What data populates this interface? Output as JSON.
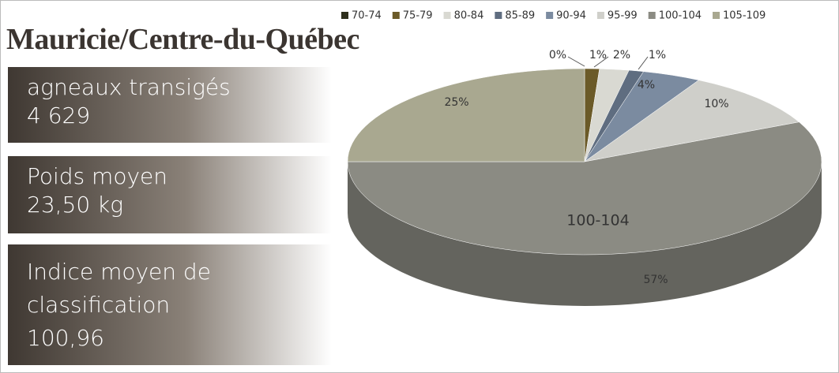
{
  "title": "Mauricie/Centre-du-Québec",
  "stats": [
    {
      "lines": [
        "agneaux transigés",
        "4 629"
      ]
    },
    {
      "lines": [
        "Poids moyen",
        "23,50 kg"
      ]
    },
    {
      "lines": [
        "Indice moyen de",
        "classification",
        "100,96"
      ]
    }
  ],
  "chart_data": {
    "type": "pie3d",
    "categories": [
      "70-74",
      "75-79",
      "80-84",
      "85-89",
      "90-94",
      "95-99",
      "100-104",
      "105-109"
    ],
    "values": [
      0,
      1,
      2,
      1,
      4,
      10,
      57,
      25
    ],
    "value_labels": [
      "0%",
      "1%",
      "2%",
      "1%",
      "4%",
      "10%",
      "57%",
      "25%"
    ],
    "colors": [
      "#2e2f1c",
      "#6b5a28",
      "#d9d9d2",
      "#5f6d80",
      "#7b8ba0",
      "#cfcfca",
      "#8b8b83",
      "#a9a890"
    ],
    "legend": "top"
  }
}
